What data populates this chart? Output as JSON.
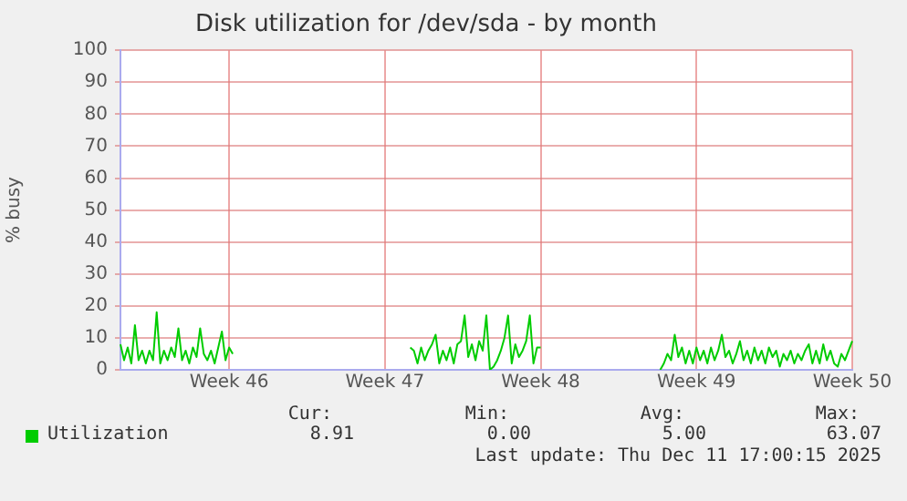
{
  "chart_data": {
    "type": "line",
    "title": "Disk utilization for /dev/sda - by month",
    "ylabel": "% busy",
    "categories": [
      null,
      null,
      null,
      null,
      null,
      null,
      null,
      null,
      null,
      null,
      null,
      null,
      null,
      null,
      null,
      null,
      null,
      null,
      null,
      null,
      null,
      null,
      null,
      null,
      null,
      null,
      null,
      null,
      null,
      null,
      "Week 46",
      null,
      null,
      null,
      null,
      null,
      null,
      null,
      null,
      null,
      null,
      null,
      null,
      null,
      null,
      null,
      null,
      null,
      null,
      null,
      null,
      null,
      null,
      null,
      null,
      null,
      null,
      null,
      null,
      null,
      null,
      null,
      null,
      null,
      null,
      null,
      null,
      null,
      null,
      null,
      null,
      null,
      null,
      "Week 47",
      null,
      null,
      null,
      null,
      null,
      null,
      null,
      null,
      null,
      null,
      null,
      null,
      null,
      null,
      null,
      null,
      null,
      null,
      null,
      null,
      null,
      null,
      null,
      null,
      null,
      null,
      null,
      null,
      null,
      null,
      null,
      null,
      null,
      null,
      null,
      null,
      null,
      null,
      null,
      null,
      null,
      null,
      "Week 48",
      null,
      null,
      null,
      null,
      null,
      null,
      null,
      null,
      null,
      null,
      null,
      null,
      null,
      null,
      null,
      null,
      null,
      null,
      null,
      null,
      null,
      null,
      null,
      null,
      null,
      null,
      null,
      null,
      null,
      null,
      null,
      null,
      null,
      null,
      null,
      null,
      null,
      null,
      null,
      null,
      null,
      null,
      "Week 49",
      null,
      null,
      null,
      null,
      null,
      null,
      null,
      null,
      null,
      null,
      null,
      null,
      null,
      null,
      null,
      null,
      null,
      null,
      null,
      null,
      null,
      null,
      null,
      null,
      null,
      null,
      null,
      null,
      null,
      null,
      null,
      null,
      null,
      null,
      null,
      null,
      null,
      null,
      null,
      null,
      null,
      null,
      "Week 50"
    ],
    "series": [
      {
        "name": "Utilization",
        "color": "#00cc00",
        "values": [
          8,
          3,
          7,
          2,
          14,
          3,
          6,
          2,
          6,
          3,
          18,
          2,
          6,
          3,
          7,
          4,
          13,
          3,
          6,
          2,
          7,
          4,
          13,
          5,
          3,
          6,
          2,
          7,
          12,
          3,
          7,
          5,
          null,
          null,
          null,
          null,
          null,
          null,
          null,
          null,
          null,
          null,
          null,
          null,
          null,
          null,
          null,
          null,
          null,
          null,
          null,
          null,
          null,
          null,
          null,
          null,
          null,
          null,
          null,
          null,
          null,
          null,
          null,
          null,
          null,
          null,
          null,
          null,
          null,
          null,
          null,
          null,
          null,
          null,
          null,
          null,
          null,
          null,
          null,
          null,
          7,
          6,
          2,
          7,
          3,
          6,
          8,
          11,
          2,
          6,
          3,
          7,
          2,
          8,
          9,
          17,
          4,
          8,
          3,
          9,
          6,
          17,
          0,
          1,
          3,
          6,
          10,
          17,
          2,
          8,
          4,
          6,
          9,
          17,
          2,
          7,
          7,
          null,
          null,
          null,
          null,
          null,
          null,
          null,
          null,
          null,
          null,
          null,
          null,
          null,
          null,
          null,
          null,
          null,
          null,
          null,
          null,
          null,
          null,
          null,
          null,
          null,
          null,
          null,
          null,
          null,
          null,
          null,
          null,
          0,
          2,
          5,
          3,
          11,
          4,
          7,
          2,
          6,
          2,
          7,
          3,
          6,
          2,
          7,
          3,
          6,
          11,
          4,
          6,
          2,
          5,
          9,
          3,
          6,
          2,
          7,
          3,
          6,
          2,
          7,
          4,
          6,
          1,
          5,
          3,
          6,
          2,
          5,
          3,
          6,
          8,
          2,
          6,
          2,
          8,
          3,
          6,
          2,
          1,
          5,
          3,
          6,
          9
        ]
      }
    ],
    "ylim": [
      0,
      100
    ],
    "yticks": [
      0,
      10,
      20,
      30,
      40,
      50,
      60,
      70,
      80,
      90,
      100
    ],
    "grid": true,
    "legend": "bottom left",
    "marker": "none",
    "line_style": "solid",
    "annotations": [
      "Cur:",
      "Min:",
      "Avg:",
      "Max:",
      "8.91",
      "0.00",
      "5.00",
      "63.07",
      "Last update: Thu Dec 11 17:00:15 2025"
    ]
  }
}
